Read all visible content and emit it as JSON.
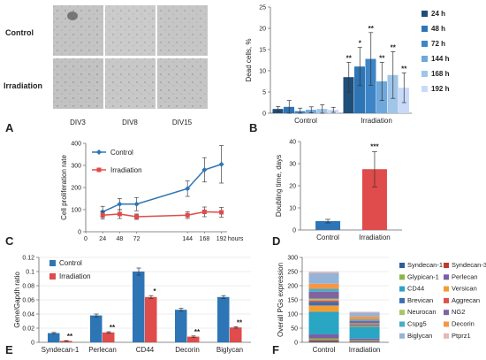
{
  "panel_letters": [
    "A",
    "B",
    "C",
    "D",
    "E",
    "F"
  ],
  "micrograph": {
    "rows": [
      "Control",
      "Irradiation"
    ],
    "cols": [
      "DIV3",
      "DIV8",
      "DIV15"
    ]
  },
  "chart_data": [
    {
      "panel": "B",
      "type": "bar",
      "ylabel": "Dead cells, %",
      "ylim": [
        0,
        25
      ],
      "yticks": [
        0,
        5,
        10,
        15,
        20,
        25
      ],
      "categories": [
        "Control",
        "Irradiation"
      ],
      "legend_position": "right",
      "series": [
        {
          "name": "24 h",
          "color": "#1f4e79",
          "values": [
            1.0,
            8.5
          ],
          "errors": [
            0.6,
            3.5
          ],
          "sig": [
            "",
            "**"
          ]
        },
        {
          "name": "48 h",
          "color": "#2e75b6",
          "values": [
            1.5,
            11.0
          ],
          "errors": [
            1.5,
            4.5
          ],
          "sig": [
            "",
            "*"
          ]
        },
        {
          "name": "72 h",
          "color": "#3d85c6",
          "values": [
            0.5,
            12.8
          ],
          "errors": [
            0.7,
            6.2
          ],
          "sig": [
            "",
            "**"
          ]
        },
        {
          "name": "144 h",
          "color": "#6fa8dc",
          "values": [
            0.8,
            7.5
          ],
          "errors": [
            0.7,
            4.5
          ],
          "sig": [
            "",
            "**"
          ]
        },
        {
          "name": "168 h",
          "color": "#9fc5e8",
          "values": [
            1.0,
            9.0
          ],
          "errors": [
            1.0,
            5.5
          ],
          "sig": [
            "",
            "**"
          ]
        },
        {
          "name": "192 h",
          "color": "#c9daf8",
          "values": [
            0.8,
            6.0
          ],
          "errors": [
            0.6,
            3.5
          ],
          "sig": [
            "",
            "**"
          ]
        }
      ]
    },
    {
      "panel": "C",
      "type": "line",
      "ylabel": "Cell proliferation rate",
      "xlabel": "hours",
      "ylim": [
        0,
        400
      ],
      "yticks": [
        0,
        100,
        200,
        300,
        400
      ],
      "x": [
        0,
        24,
        48,
        72,
        144,
        168,
        192
      ],
      "legend_position": "top-left",
      "series": [
        {
          "name": "Control",
          "color": "#2e75b6",
          "marker": "diamond",
          "x": [
            24,
            48,
            72,
            144,
            168,
            192
          ],
          "y": [
            90,
            125,
            125,
            195,
            280,
            305
          ],
          "errors": [
            25,
            25,
            30,
            35,
            55,
            85
          ]
        },
        {
          "name": "Irradiation",
          "color": "#e04b4b",
          "marker": "square",
          "x": [
            24,
            48,
            72,
            144,
            168,
            192
          ],
          "y": [
            75,
            80,
            68,
            75,
            90,
            88
          ],
          "errors": [
            18,
            20,
            12,
            15,
            22,
            22
          ]
        }
      ]
    },
    {
      "panel": "D",
      "type": "bar",
      "ylabel": "Doubling time, days",
      "ylim": [
        0,
        40
      ],
      "yticks": [
        0,
        10,
        20,
        30,
        40
      ],
      "categories": [
        "Control",
        "Irradiation"
      ],
      "values": [
        4.0,
        27.5
      ],
      "errors": [
        0.8,
        8.0
      ],
      "colors": [
        "#2e75b6",
        "#e04b4b"
      ],
      "sig": [
        "",
        "***"
      ]
    },
    {
      "panel": "E",
      "type": "bar",
      "ylabel": "Gene/Gapdh ratio",
      "ylim": [
        0,
        0.12
      ],
      "yticks": [
        0,
        0.02,
        0.04,
        0.06,
        0.08,
        0.1,
        0.12
      ],
      "categories": [
        "Syndecan-1",
        "Perlecan",
        "CD44",
        "Decorin",
        "Biglycan"
      ],
      "legend_position": "top-left",
      "series": [
        {
          "name": "Control",
          "color": "#2e75b6",
          "values": [
            0.013,
            0.038,
            0.1,
            0.046,
            0.064
          ],
          "errors": [
            0.001,
            0.002,
            0.005,
            0.002,
            0.002
          ]
        },
        {
          "name": "Irradiation",
          "color": "#e04b4b",
          "values": [
            0.002,
            0.014,
            0.064,
            0.008,
            0.021
          ],
          "errors": [
            0.0003,
            0.001,
            0.002,
            0.001,
            0.001
          ],
          "sig": [
            "**",
            "**",
            "*",
            "**",
            "**"
          ]
        }
      ]
    },
    {
      "panel": "F",
      "type": "bar",
      "stacked": true,
      "ylabel": "Overall PGs expression",
      "ylim": [
        0,
        300
      ],
      "yticks": [
        0,
        50,
        100,
        150,
        200,
        250,
        300
      ],
      "categories": [
        "Control",
        "Irradiation"
      ],
      "legend_position": "right",
      "series": [
        {
          "name": "Syndecan-1",
          "color": "#2e5e99",
          "values": [
            4,
            2
          ]
        },
        {
          "name": "Syndecan-3",
          "color": "#c0392b",
          "values": [
            4,
            2
          ]
        },
        {
          "name": "Glypican-1",
          "color": "#8fb34a",
          "values": [
            6,
            3
          ]
        },
        {
          "name": "Perlecan",
          "color": "#7b5ea7",
          "values": [
            14,
            6
          ]
        },
        {
          "name": "CD44",
          "color": "#2aa5c4",
          "values": [
            80,
            42
          ]
        },
        {
          "name": "Versican",
          "color": "#f39c34",
          "values": [
            22,
            3
          ]
        },
        {
          "name": "Brevican",
          "color": "#3c6eb4",
          "values": [
            12,
            4
          ]
        },
        {
          "name": "Aggrecan",
          "color": "#d9534f",
          "values": [
            6,
            2
          ]
        },
        {
          "name": "Neurocan",
          "color": "#a6c864",
          "values": [
            6,
            3
          ]
        },
        {
          "name": "NG2",
          "color": "#8064a2",
          "values": [
            25,
            9
          ]
        },
        {
          "name": "Cspg5",
          "color": "#4bacc6",
          "values": [
            10,
            5
          ]
        },
        {
          "name": "Decorin",
          "color": "#f79646",
          "values": [
            18,
            10
          ]
        },
        {
          "name": "Biglycan",
          "color": "#95b3d7",
          "values": [
            38,
            14
          ]
        },
        {
          "name": "Ptprz1",
          "color": "#e6b8b7",
          "values": [
            5,
            3
          ]
        }
      ]
    }
  ]
}
